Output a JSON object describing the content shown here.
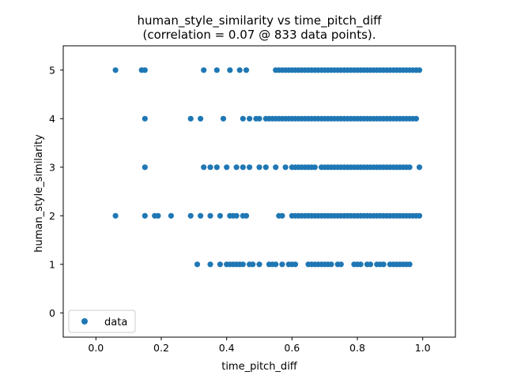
{
  "chart_data": {
    "type": "scatter",
    "title_line1": "human_style_similarity vs time_pitch_diff",
    "title_line2": "(correlation = 0.07 @ 833 data points).",
    "xlabel": "time_pitch_diff",
    "ylabel": "human_style_similarity",
    "xlim": [
      -0.1,
      1.1
    ],
    "ylim": [
      -0.5,
      5.5
    ],
    "xticks": [
      0.0,
      0.2,
      0.4,
      0.6,
      0.8,
      1.0
    ],
    "xtick_labels": [
      "0.0",
      "0.2",
      "0.4",
      "0.6",
      "0.8",
      "1.0"
    ],
    "yticks": [
      0,
      1,
      2,
      3,
      4,
      5
    ],
    "ytick_labels": [
      "0",
      "1",
      "2",
      "3",
      "4",
      "5"
    ],
    "grid": false,
    "legend": {
      "position": "lower-left",
      "entries": [
        "data"
      ]
    },
    "marker_color": "#1f77b4",
    "series": [
      {
        "name": "data",
        "points": {
          "5": [
            0.06,
            0.14,
            0.15,
            0.33,
            0.37,
            0.41,
            0.44,
            0.46,
            0.55,
            0.56,
            0.57,
            0.58,
            0.59,
            0.6,
            0.61,
            0.62,
            0.63,
            0.64,
            0.65,
            0.66,
            0.67,
            0.68,
            0.69,
            0.7,
            0.71,
            0.72,
            0.73,
            0.74,
            0.75,
            0.76,
            0.77,
            0.78,
            0.79,
            0.8,
            0.81,
            0.82,
            0.83,
            0.84,
            0.85,
            0.86,
            0.87,
            0.88,
            0.89,
            0.9,
            0.91,
            0.92,
            0.93,
            0.94,
            0.95,
            0.96,
            0.97,
            0.98,
            0.99
          ],
          "4": [
            0.15,
            0.29,
            0.32,
            0.39,
            0.45,
            0.47,
            0.49,
            0.5,
            0.52,
            0.53,
            0.54,
            0.55,
            0.56,
            0.57,
            0.58,
            0.59,
            0.6,
            0.61,
            0.62,
            0.63,
            0.64,
            0.65,
            0.66,
            0.67,
            0.68,
            0.69,
            0.7,
            0.71,
            0.72,
            0.73,
            0.74,
            0.75,
            0.76,
            0.77,
            0.78,
            0.79,
            0.8,
            0.81,
            0.82,
            0.83,
            0.84,
            0.85,
            0.86,
            0.87,
            0.88,
            0.89,
            0.9,
            0.91,
            0.92,
            0.93,
            0.94,
            0.95,
            0.96,
            0.97,
            0.98
          ],
          "3": [
            0.15,
            0.33,
            0.35,
            0.37,
            0.4,
            0.43,
            0.45,
            0.47,
            0.5,
            0.52,
            0.55,
            0.58,
            0.6,
            0.61,
            0.62,
            0.63,
            0.64,
            0.65,
            0.66,
            0.67,
            0.69,
            0.7,
            0.71,
            0.72,
            0.73,
            0.74,
            0.75,
            0.76,
            0.77,
            0.78,
            0.79,
            0.8,
            0.81,
            0.82,
            0.83,
            0.84,
            0.85,
            0.86,
            0.87,
            0.88,
            0.89,
            0.9,
            0.91,
            0.92,
            0.93,
            0.94,
            0.95,
            0.96,
            0.99
          ],
          "2": [
            0.06,
            0.15,
            0.18,
            0.19,
            0.23,
            0.29,
            0.32,
            0.35,
            0.38,
            0.41,
            0.42,
            0.43,
            0.45,
            0.46,
            0.56,
            0.57,
            0.6,
            0.61,
            0.62,
            0.63,
            0.64,
            0.65,
            0.66,
            0.67,
            0.68,
            0.69,
            0.7,
            0.71,
            0.72,
            0.73,
            0.74,
            0.75,
            0.76,
            0.77,
            0.78,
            0.79,
            0.8,
            0.81,
            0.82,
            0.83,
            0.84,
            0.85,
            0.86,
            0.87,
            0.88,
            0.89,
            0.9,
            0.91,
            0.92,
            0.93,
            0.94,
            0.95,
            0.96,
            0.97,
            0.98,
            0.99
          ],
          "1": [
            0.31,
            0.35,
            0.38,
            0.4,
            0.41,
            0.42,
            0.43,
            0.44,
            0.45,
            0.47,
            0.48,
            0.5,
            0.53,
            0.54,
            0.55,
            0.57,
            0.59,
            0.6,
            0.61,
            0.65,
            0.66,
            0.67,
            0.68,
            0.69,
            0.7,
            0.71,
            0.72,
            0.74,
            0.75,
            0.79,
            0.8,
            0.81,
            0.83,
            0.84,
            0.86,
            0.87,
            0.88,
            0.9,
            0.91,
            0.92,
            0.93,
            0.94,
            0.95,
            0.96
          ]
        }
      }
    ]
  }
}
